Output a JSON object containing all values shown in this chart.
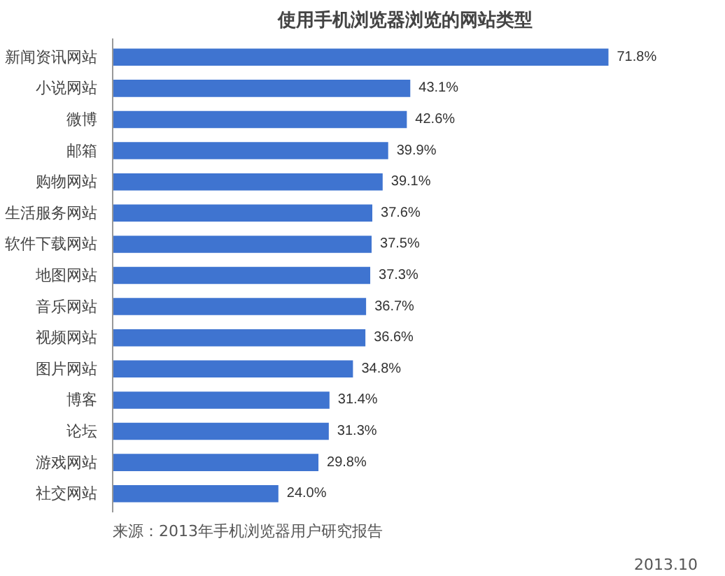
{
  "chart_data": {
    "type": "bar",
    "orientation": "horizontal",
    "title": "使用手机浏览器浏览的网站类型",
    "categories": [
      "新闻资讯网站",
      "小说网站",
      "微博",
      "邮箱",
      "购物网站",
      "生活服务网站",
      "软件下载网站",
      "地图网站",
      "音乐网站",
      "视频网站",
      "图片网站",
      "博客",
      "论坛",
      "游戏网站",
      "社交网站"
    ],
    "values": [
      71.8,
      43.1,
      42.6,
      39.9,
      39.1,
      37.6,
      37.5,
      37.3,
      36.7,
      36.6,
      34.8,
      31.4,
      31.3,
      29.8,
      24.0
    ],
    "value_labels": [
      "71.8%",
      "43.1%",
      "42.6%",
      "39.9%",
      "39.1%",
      "37.6%",
      "37.5%",
      "37.3%",
      "36.7%",
      "36.6%",
      "34.8%",
      "31.4%",
      "31.3%",
      "29.8%",
      "24.0%"
    ],
    "color": "#3f74d0",
    "grid": false,
    "tick_labels": "y",
    "annotations": [
      "来源：2013年手机浏览器用户研究报告",
      "2013.10"
    ]
  }
}
